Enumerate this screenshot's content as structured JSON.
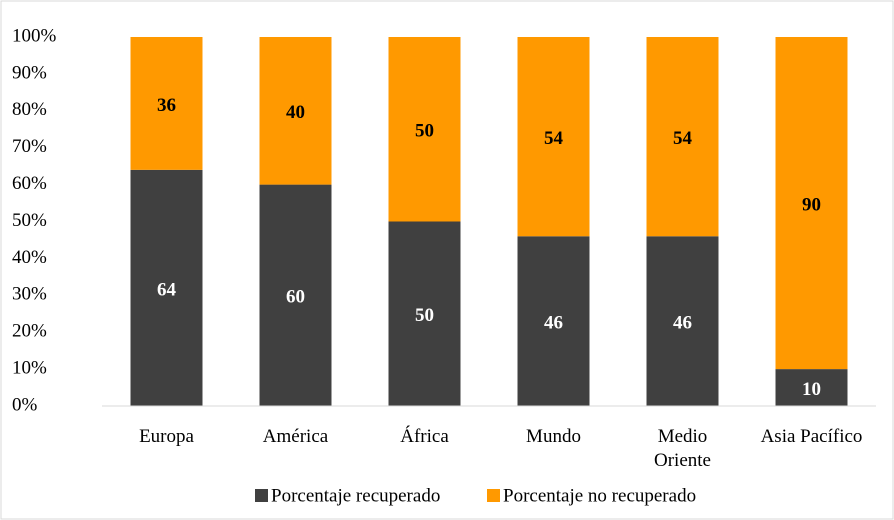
{
  "chart_data": {
    "type": "stacked_bar",
    "categories": [
      "Europa",
      "América",
      "África",
      "Mundo",
      "Medio\nOriente",
      "Asia Pacífico"
    ],
    "series": [
      {
        "name": "Porcentaje recuperado",
        "color": "#404040",
        "label_color": "#ffffff",
        "values": [
          64,
          60,
          50,
          46,
          46,
          10
        ]
      },
      {
        "name": "Porcentaje no recuperado",
        "color": "#ff9900",
        "label_color": "#000000",
        "values": [
          36,
          40,
          50,
          54,
          54,
          90
        ]
      }
    ],
    "ylim": [
      0,
      100
    ],
    "yticks": [
      {
        "value": 0,
        "label": "0%"
      },
      {
        "value": 10,
        "label": "10%"
      },
      {
        "value": 20,
        "label": "20%"
      },
      {
        "value": 30,
        "label": "30%"
      },
      {
        "value": 40,
        "label": "40%"
      },
      {
        "value": 50,
        "label": "50%"
      },
      {
        "value": 60,
        "label": "60%"
      },
      {
        "value": 70,
        "label": "70%"
      },
      {
        "value": 80,
        "label": "80%"
      },
      {
        "value": 90,
        "label": "90%"
      },
      {
        "value": 100,
        "label": "100%"
      }
    ],
    "legend": "bottom"
  }
}
